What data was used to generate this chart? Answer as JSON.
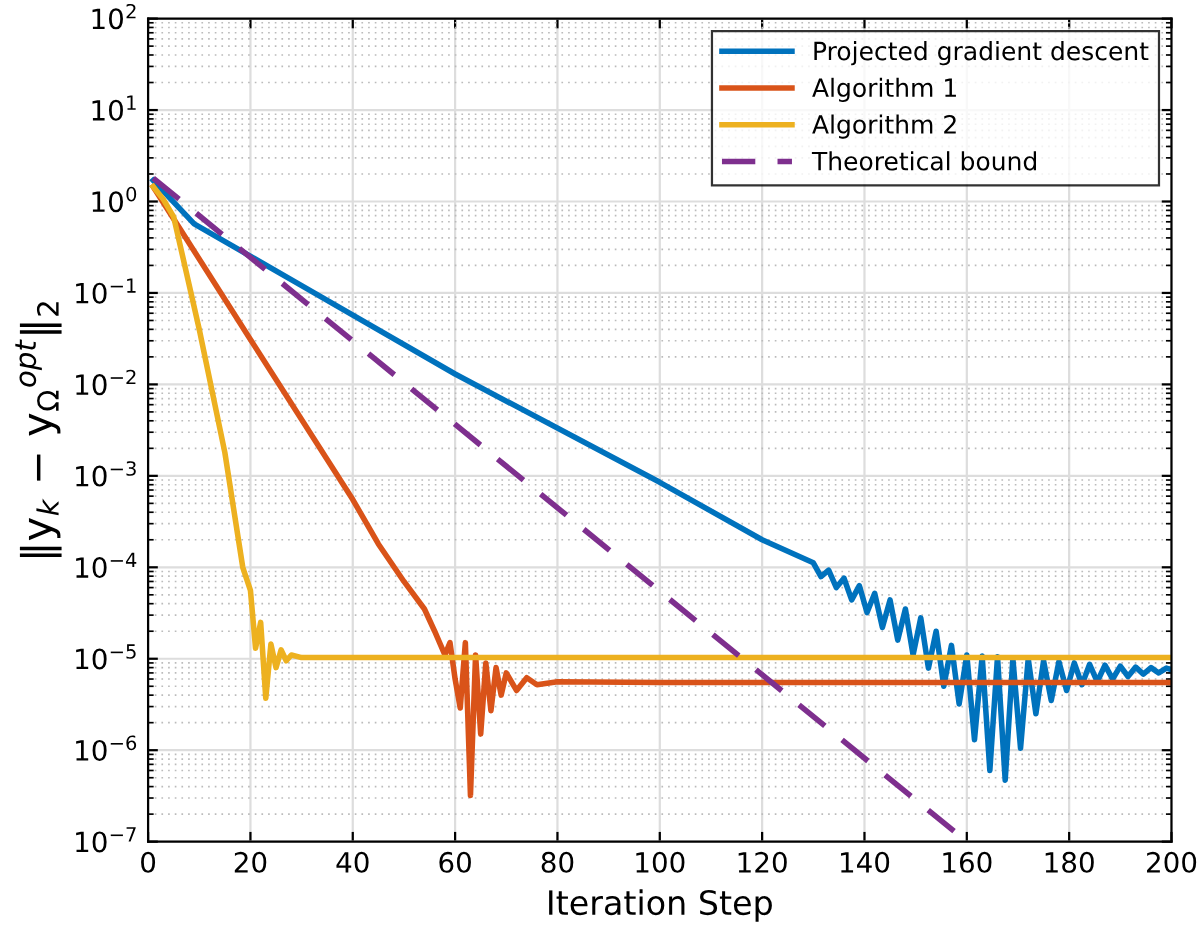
{
  "chart_data": {
    "type": "line",
    "xlabel": "Iteration Step",
    "ylabel": "‖y$_{k}$ − y$_{Ω}$$^{opt}$‖$_{2}$",
    "log": "y",
    "grid": true,
    "legend": "top right",
    "line_style": "solid",
    "xlim": [
      0,
      200
    ],
    "xticks": [
      0,
      20,
      40,
      60,
      80,
      100,
      120,
      140,
      160,
      180,
      200
    ],
    "ylim": [
      1e-07,
      100
    ],
    "yticks": [
      {
        "value": 1e-07,
        "label": "10$^{−7}$"
      },
      {
        "value": 1e-06,
        "label": "10$^{−6}$"
      },
      {
        "value": 1e-05,
        "label": "10$^{−5}$"
      },
      {
        "value": 0.0001,
        "label": "10$^{−4}$"
      },
      {
        "value": 0.001,
        "label": "10$^{−3}$"
      },
      {
        "value": 0.01,
        "label": "10$^{−2}$"
      },
      {
        "value": 0.1,
        "label": "10$^{−1}$"
      },
      {
        "value": 1,
        "label": "10$^{0}$"
      },
      {
        "value": 10,
        "label": "10$^{1}$"
      },
      {
        "value": 100,
        "label": "10$^{2}$"
      }
    ],
    "series": [
      {
        "name": "Projected gradient descent",
        "color": "#0072bd",
        "x": [
          1,
          9,
          30,
          60,
          100,
          120,
          130,
          131.5,
          133,
          134.5,
          136,
          137.5,
          139,
          140.5,
          142,
          143.5,
          145,
          146.5,
          148,
          149.5,
          151,
          152.5,
          154,
          155.5,
          157,
          158.5,
          160,
          161.5,
          163,
          164.5,
          166,
          167.5,
          169,
          170.5,
          172,
          173.5,
          175,
          176.5,
          178,
          179.5,
          181,
          182.5,
          184,
          185.5,
          187,
          188.5,
          190,
          191.5,
          193,
          194.5,
          196,
          197.5,
          199,
          200
        ],
        "values": [
          1.7,
          0.57,
          0.12,
          0.013,
          0.00085,
          0.0002,
          0.000112,
          7.9e-05,
          9.3e-05,
          6e-05,
          7.6e-05,
          4.4e-05,
          6.3e-05,
          3.2e-05,
          5.2e-05,
          2.2e-05,
          4.4e-05,
          1.6e-05,
          3.5e-05,
          1.1e-05,
          2.8e-05,
          7.9e-06,
          2e-05,
          5e-06,
          1.4e-05,
          3.2e-06,
          1.1e-05,
          1.3e-06,
          1.07e-05,
          6e-07,
          1.05e-05,
          4.7e-07,
          1e-05,
          1.05e-06,
          1e-05,
          2.5e-06,
          9.5e-06,
          3.5e-06,
          9.3e-06,
          4.5e-06,
          9e-06,
          5.2e-06,
          8.7e-06,
          5.6e-06,
          8.5e-06,
          6e-06,
          8.3e-06,
          6.4e-06,
          8.1e-06,
          6.8e-06,
          8e-06,
          7e-06,
          7.9e-06,
          7.6e-06
        ]
      },
      {
        "name": "Algorithm 1",
        "color": "#d95319",
        "x": [
          1,
          20,
          40,
          45,
          50,
          54,
          56,
          58,
          59,
          60,
          61,
          62,
          63,
          64,
          65,
          66,
          67,
          68,
          69,
          70,
          72,
          74,
          76,
          80,
          100,
          200
        ],
        "values": [
          1.45,
          0.031,
          0.00055,
          0.00018,
          7e-05,
          3.5e-05,
          2e-05,
          1.1e-05,
          1.5e-05,
          6e-06,
          2.9e-06,
          1.5e-05,
          3.2e-07,
          1.1e-05,
          1.5e-06,
          9e-06,
          2.7e-06,
          8e-06,
          4e-06,
          7e-06,
          4.5e-06,
          6.2e-06,
          5.2e-06,
          5.6e-06,
          5.5e-06,
          5.5e-06
        ]
      },
      {
        "name": "Algorithm 2",
        "color": "#edb120",
        "x": [
          1,
          3,
          5,
          10,
          15,
          18.5,
          20,
          21,
          22,
          23,
          24,
          25,
          26,
          27,
          28,
          30,
          200
        ],
        "values": [
          1.45,
          1.05,
          0.68,
          0.04,
          0.0018,
          0.0001,
          5.6e-05,
          1.3e-05,
          2.5e-05,
          3.7e-06,
          1.45e-05,
          8e-06,
          1.25e-05,
          9.5e-06,
          1.1e-05,
          1.03e-05,
          1.03e-05
        ]
      },
      {
        "name": "Theoretical bound",
        "color": "#7e2f8e",
        "line_style": "dashed",
        "x": [
          1,
          160
        ],
        "values": [
          1.8,
          1e-07
        ]
      }
    ]
  }
}
